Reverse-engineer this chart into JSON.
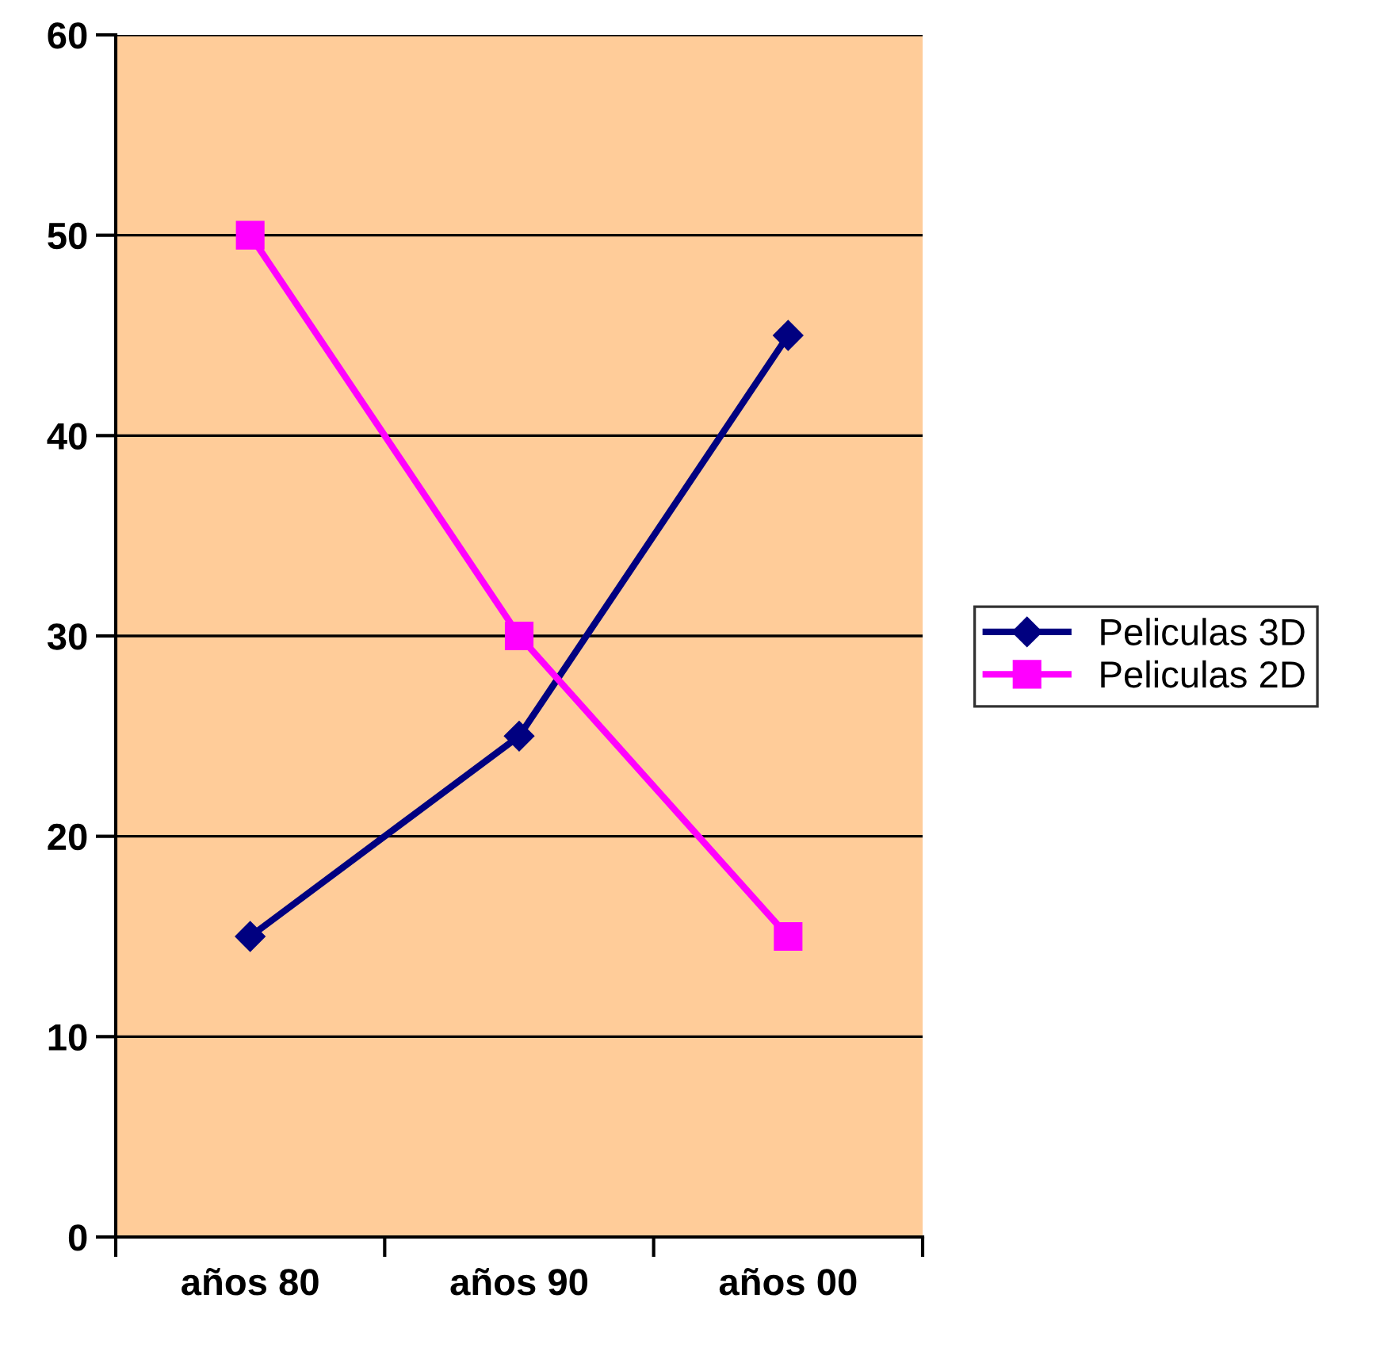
{
  "chart_data": {
    "type": "line",
    "categories": [
      "años 80",
      "años 90",
      "años 00"
    ],
    "series": [
      {
        "name": "Peliculas 3D",
        "color": "#000080",
        "marker": "diamond",
        "values": [
          15,
          25,
          45
        ]
      },
      {
        "name": "Peliculas 2D",
        "color": "#ff00ff",
        "marker": "square",
        "values": [
          50,
          30,
          15
        ]
      }
    ],
    "ylim": [
      0,
      60
    ],
    "yticks": [
      0,
      10,
      20,
      30,
      40,
      50,
      60
    ],
    "grid": "y",
    "legend": "right",
    "line_style": "solid"
  }
}
